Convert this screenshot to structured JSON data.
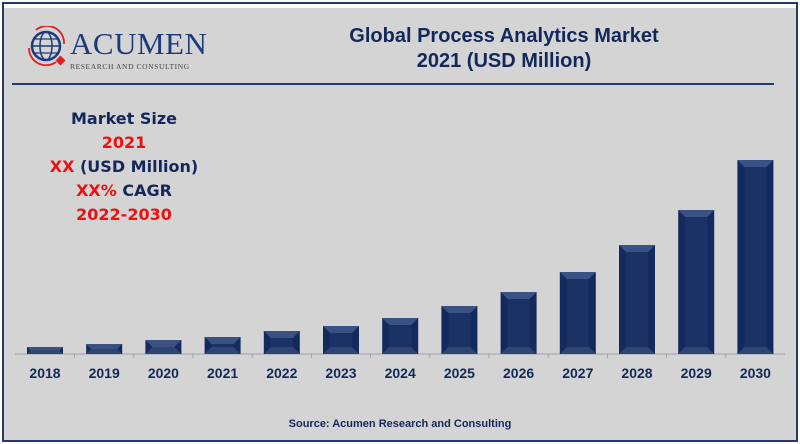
{
  "logo": {
    "name": "ACUMEN",
    "tagline": "RESEARCH AND CONSULTING"
  },
  "header": {
    "title_line1": "Global Process Analytics Market",
    "title_line2": "2021 (USD Million)"
  },
  "info": {
    "label": "Market Size",
    "year": "2021",
    "value_prefix": "XX",
    "value_unit": " (USD Million)",
    "cagr_prefix": "XX%",
    "cagr_label": " CAGR",
    "period": "2022-2030"
  },
  "source": "Source: Acumen Research and Consulting",
  "colors": {
    "bar": "#142a5c",
    "bar_light": "#3a5283",
    "accent_red": "#ee1111",
    "navy": "#13285a"
  },
  "chart_data": {
    "type": "bar",
    "title": "Global Process Analytics Market 2021 (USD Million)",
    "xlabel": "",
    "ylabel": "",
    "categories": [
      "2018",
      "2019",
      "2020",
      "2021",
      "2022",
      "2023",
      "2024",
      "2025",
      "2026",
      "2027",
      "2028",
      "2029",
      "2030"
    ],
    "values": [
      7,
      10,
      14,
      17,
      23,
      28,
      36,
      48,
      62,
      82,
      109,
      144,
      194
    ],
    "ylim": [
      0,
      200
    ],
    "grid": false,
    "note": "relative values; no y-axis shown"
  }
}
